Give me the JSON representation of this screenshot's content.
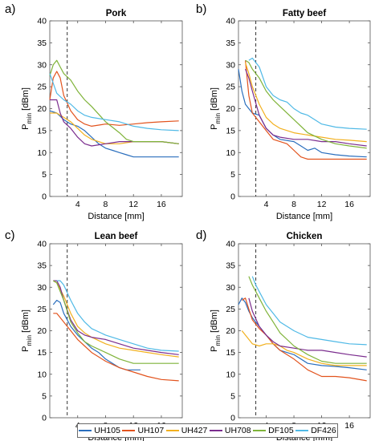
{
  "chart_data": [
    {
      "type": "line",
      "panel_label": "a)",
      "title": "Pork",
      "xlabel": "Distance [mm]",
      "ylabel_main": "P",
      "ylabel_sub": "min",
      "ylabel_unit": "[dBm]",
      "xlim": [
        0,
        19
      ],
      "ylim": [
        0,
        40
      ],
      "xticks": [
        4,
        8,
        12,
        16
      ],
      "yticks": [
        0,
        5,
        10,
        15,
        20,
        25,
        30,
        35,
        40
      ],
      "vline_x": 2.5,
      "series": [
        {
          "name": "UH105",
          "x": [
            0,
            1,
            2,
            3,
            4,
            5,
            6,
            7,
            8,
            9,
            10,
            11,
            12,
            14,
            16,
            18.5
          ],
          "y": [
            19.5,
            19,
            17.5,
            16.5,
            16,
            15,
            13.5,
            12,
            11,
            10.5,
            10,
            9.5,
            9,
            9,
            9,
            9
          ]
        },
        {
          "name": "UH107",
          "x": [
            0,
            0.5,
            1,
            1.5,
            2,
            3,
            4,
            5,
            6,
            8,
            10,
            12,
            14,
            16,
            18.5
          ],
          "y": [
            22,
            27,
            28.5,
            27,
            23,
            19.5,
            17.5,
            16.5,
            16,
            16.5,
            16.2,
            16.5,
            16.8,
            17,
            17.2
          ]
        },
        {
          "name": "UH427",
          "x": [
            0,
            1,
            2,
            3,
            4,
            5,
            6,
            7,
            8,
            10,
            12,
            14,
            16,
            18.5
          ],
          "y": [
            19,
            19,
            18,
            17,
            15.5,
            14,
            13,
            12.5,
            12,
            12,
            12.5,
            12.5,
            12.5,
            12
          ]
        },
        {
          "name": "UH708",
          "x": [
            0,
            0.5,
            1,
            1.5,
            2,
            3,
            4,
            5,
            6,
            8,
            10,
            12,
            14,
            16,
            18.5
          ],
          "y": [
            22,
            22,
            22,
            19,
            17,
            15.5,
            13.5,
            12,
            11.5,
            12,
            12.5,
            12.5,
            12.5,
            12.5,
            12
          ]
        },
        {
          "name": "DF105",
          "x": [
            0,
            0.5,
            1,
            1.5,
            2,
            3,
            4,
            5,
            6,
            8,
            10,
            11,
            12,
            14,
            16,
            18.5
          ],
          "y": [
            27.5,
            30,
            31,
            29.5,
            28,
            26.5,
            24,
            22,
            20.5,
            17,
            14.5,
            13,
            12.5,
            12.5,
            12.5,
            12
          ]
        },
        {
          "name": "DF426",
          "x": [
            0,
            1,
            2,
            3,
            4,
            5,
            6,
            8,
            10,
            12,
            14,
            16,
            18.5
          ],
          "y": [
            28,
            23.5,
            22,
            21,
            19.5,
            18.5,
            18,
            17.5,
            17,
            16,
            15.5,
            15.2,
            15
          ]
        }
      ]
    },
    {
      "type": "line",
      "panel_label": "b)",
      "title": "Fatty beef",
      "xlabel": "Distance [mm]",
      "ylabel_main": "P",
      "ylabel_sub": "min",
      "ylabel_unit": "[dBm]",
      "xlim": [
        0,
        19
      ],
      "ylim": [
        0,
        40
      ],
      "xticks": [
        4,
        8,
        12,
        16
      ],
      "yticks": [
        0,
        5,
        10,
        15,
        20,
        25,
        30,
        35,
        40
      ],
      "vline_x": 2.5,
      "series": [
        {
          "name": "UH105",
          "x": [
            0,
            0.5,
            1,
            1.5,
            2,
            3,
            4,
            5,
            6,
            8,
            9,
            10,
            11,
            12,
            14,
            16,
            18.5
          ],
          "y": [
            29,
            24,
            21,
            20,
            19,
            18.5,
            15.5,
            14,
            13,
            12.5,
            11.5,
            10.5,
            11,
            10,
            9.5,
            9.2,
            9
          ]
        },
        {
          "name": "UH107",
          "x": [
            1,
            1.5,
            2,
            3,
            4,
            5,
            6,
            7,
            8,
            9,
            10,
            12,
            14,
            16,
            18.5
          ],
          "y": [
            31,
            23,
            19,
            17,
            15,
            13,
            12.5,
            12,
            10.5,
            9,
            8.5,
            8.5,
            8.5,
            8.5,
            8.5
          ]
        },
        {
          "name": "UH427",
          "x": [
            1,
            1.5,
            2,
            3,
            4,
            5,
            6,
            8,
            10,
            12,
            14,
            16,
            18.5
          ],
          "y": [
            30.5,
            28,
            25,
            21,
            18,
            16.5,
            15.5,
            14.5,
            14,
            13.5,
            13,
            12.8,
            12.5
          ]
        },
        {
          "name": "UH708",
          "x": [
            1,
            1.5,
            2,
            3,
            4,
            5,
            6,
            8,
            10,
            12,
            14,
            16,
            18.5
          ],
          "y": [
            29,
            27,
            24,
            18.5,
            15.5,
            14,
            13.5,
            13,
            13,
            12.5,
            12.5,
            12,
            11.5
          ]
        },
        {
          "name": "DF105",
          "x": [
            1,
            1.5,
            2,
            3,
            4,
            5,
            6,
            8,
            10,
            12,
            14,
            16,
            18.5
          ],
          "y": [
            31,
            30.5,
            29,
            27,
            24,
            22,
            20.5,
            17.5,
            14.5,
            13,
            12,
            11.5,
            11
          ]
        },
        {
          "name": "DF426",
          "x": [
            1.5,
            2,
            3,
            4,
            5,
            6,
            7,
            8,
            9,
            10,
            12,
            14,
            16,
            18.5
          ],
          "y": [
            31,
            31.5,
            29.5,
            25,
            23,
            22,
            21.5,
            20,
            19,
            18.5,
            16.5,
            15.8,
            15.5,
            15.3
          ]
        }
      ]
    },
    {
      "type": "line",
      "panel_label": "c)",
      "title": "Lean beef",
      "xlabel": "Distance [mm]",
      "ylabel_main": "P",
      "ylabel_sub": "min",
      "ylabel_unit": "[dBm]",
      "xlim": [
        0,
        19
      ],
      "ylim": [
        0,
        40
      ],
      "xticks": [
        4,
        8,
        12,
        16
      ],
      "yticks": [
        0,
        5,
        10,
        15,
        20,
        25,
        30,
        35,
        40
      ],
      "vline_x": 2.5,
      "series": [
        {
          "name": "UH105",
          "x": [
            0.5,
            1,
            1.5,
            2,
            3,
            4,
            5,
            6,
            7,
            8,
            9,
            10,
            11,
            12,
            13
          ],
          "y": [
            26,
            27,
            26.5,
            24,
            21,
            19,
            17.5,
            16,
            15,
            13.5,
            12.5,
            11.5,
            11,
            11,
            11
          ]
        },
        {
          "name": "UH107",
          "x": [
            0.5,
            1,
            2,
            3,
            4,
            5,
            6,
            8,
            10,
            12,
            14,
            16,
            18.5
          ],
          "y": [
            24,
            24,
            22,
            20,
            18,
            16.5,
            15,
            13,
            11.5,
            10.5,
            9.5,
            8.8,
            8.5
          ]
        },
        {
          "name": "UH427",
          "x": [
            0.5,
            1,
            2,
            3,
            4,
            5,
            6,
            8,
            10,
            12,
            14,
            16,
            18.5
          ],
          "y": [
            31.5,
            31,
            28,
            24,
            21,
            19.5,
            18.5,
            17,
            16,
            15.5,
            15,
            14.5,
            14
          ]
        },
        {
          "name": "UH708",
          "x": [
            0.5,
            1,
            1.5,
            2,
            3,
            4,
            5,
            6,
            8,
            10,
            12,
            14,
            16,
            18.5
          ],
          "y": [
            31.5,
            31.5,
            30,
            27,
            22.5,
            20,
            19,
            18.5,
            18,
            17,
            16,
            15.5,
            15,
            14.5
          ]
        },
        {
          "name": "DF105",
          "x": [
            0.5,
            1,
            2,
            3,
            4,
            5,
            6,
            8,
            10,
            12,
            14,
            16,
            18.5
          ],
          "y": [
            31.5,
            31,
            27,
            22,
            19.5,
            17.5,
            16.5,
            15,
            13.5,
            12.5,
            12.5,
            12.5,
            12.5
          ]
        },
        {
          "name": "DF426",
          "x": [
            1,
            1.5,
            2,
            3,
            4,
            5,
            6,
            8,
            10,
            12,
            14,
            16,
            18.5
          ],
          "y": [
            31.5,
            31.5,
            30.5,
            27,
            24,
            22,
            20.5,
            19,
            18,
            17,
            16,
            15.5,
            15.3
          ]
        }
      ]
    },
    {
      "type": "line",
      "panel_label": "d)",
      "title": "Chicken",
      "xlabel": "Distance [mm]",
      "ylabel_main": "P",
      "ylabel_sub": "min",
      "ylabel_unit": "[dBm]",
      "xlim": [
        0,
        19
      ],
      "ylim": [
        0,
        40
      ],
      "xticks": [
        4,
        8,
        12,
        16
      ],
      "yticks": [
        0,
        5,
        10,
        15,
        20,
        25,
        30,
        35,
        40
      ],
      "vline_x": 2.5,
      "series": [
        {
          "name": "UH105",
          "x": [
            0,
            0.5,
            1,
            1.5,
            2,
            3,
            4,
            5,
            6,
            8,
            10,
            12,
            14,
            16,
            18.5
          ],
          "y": [
            26,
            27.5,
            26.5,
            24.5,
            23,
            21,
            19,
            17,
            15.5,
            14.5,
            12.5,
            12,
            11.8,
            11.5,
            11
          ]
        },
        {
          "name": "UH107",
          "x": [
            0.5,
            1,
            1.5,
            2,
            3,
            4,
            5,
            6,
            8,
            10,
            12,
            14,
            16,
            18.5
          ],
          "y": [
            27,
            27.5,
            25,
            22.5,
            20.5,
            19,
            17,
            15.5,
            13.5,
            11,
            9.5,
            9.5,
            9.2,
            8.5
          ]
        },
        {
          "name": "UH427",
          "x": [
            0.5,
            1,
            2,
            3,
            4,
            5,
            6,
            7,
            8,
            10,
            12,
            14,
            16,
            18.5
          ],
          "y": [
            20,
            19,
            17,
            16.5,
            17,
            17,
            16.5,
            15.5,
            15,
            13.5,
            12.5,
            12,
            12,
            12
          ]
        },
        {
          "name": "UH708",
          "x": [
            1.5,
            2,
            3,
            4,
            5,
            6,
            8,
            10,
            12,
            14,
            16,
            18.5
          ],
          "y": [
            27.5,
            24.5,
            21,
            19,
            17.5,
            16.5,
            16,
            15.5,
            15.5,
            15,
            14.5,
            14
          ]
        },
        {
          "name": "DF105",
          "x": [
            1.5,
            2,
            3,
            4,
            5,
            6,
            8,
            10,
            12,
            14,
            16,
            18.5
          ],
          "y": [
            32.5,
            30.5,
            27.5,
            24.5,
            22,
            19.5,
            16.5,
            14.5,
            13,
            12.5,
            12.5,
            12.5
          ]
        },
        {
          "name": "DF426",
          "x": [
            2,
            2.5,
            3,
            4,
            5,
            6,
            8,
            10,
            12,
            14,
            16,
            18.5
          ],
          "y": [
            32.5,
            30.5,
            29,
            26,
            24,
            22,
            20,
            18.5,
            18,
            17.5,
            17,
            16.8
          ]
        }
      ]
    }
  ],
  "legend": [
    {
      "name": "UH105",
      "color": "#2a6ebd"
    },
    {
      "name": "UH107",
      "color": "#e2531d"
    },
    {
      "name": "UH427",
      "color": "#f2b01e"
    },
    {
      "name": "UH708",
      "color": "#7b2d8e"
    },
    {
      "name": "DF105",
      "color": "#7fb339"
    },
    {
      "name": "DF426",
      "color": "#4fb9e6"
    }
  ],
  "style": {
    "vline_color": "#333333",
    "axis_color": "#555555",
    "grid": false,
    "legend_placement": "bottom-center"
  }
}
